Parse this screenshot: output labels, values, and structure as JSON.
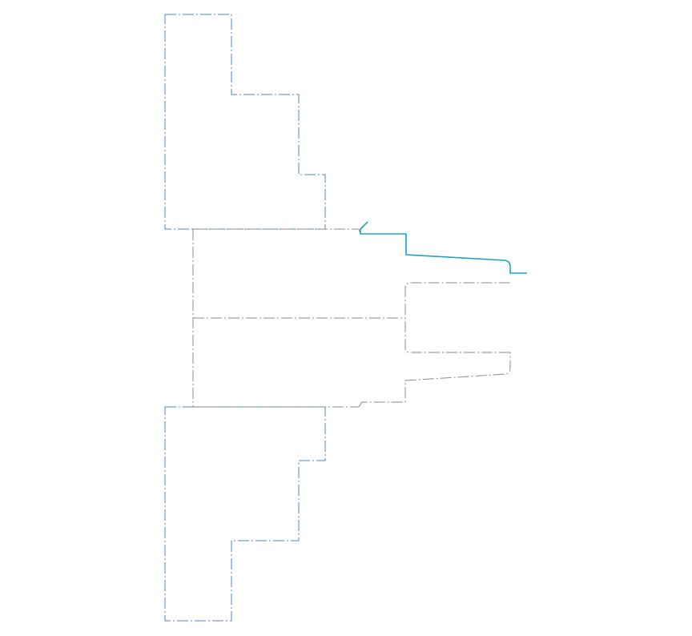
{
  "diagram": {
    "kind": "turning-toolpath-2d",
    "labels": [],
    "colors": {
      "chuck_outline": "#4a86c8",
      "part_outline": "#8a8a8a",
      "toolpath": "#19a3c7",
      "background": "#ffffff"
    },
    "line_styles": {
      "chuck_outline": "dash-dot",
      "part_outline": "dash-dot",
      "toolpath": "solid"
    },
    "elements": [
      "chuck-jaw-upper",
      "chuck-jaw-lower",
      "stock-block",
      "part-centerline",
      "part-profile-upper",
      "part-profile-lower",
      "bore-profile",
      "finishing-toolpath"
    ]
  }
}
